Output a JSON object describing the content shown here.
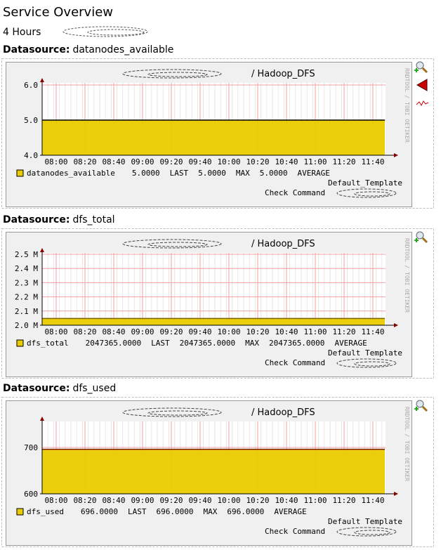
{
  "header": {
    "title": "Service Overview",
    "period": "4 Hours"
  },
  "panels": [
    {
      "label": "Datasource:",
      "name": "datanodes_available"
    },
    {
      "label": "Datasource:",
      "name": "dfs_total"
    },
    {
      "label": "Datasource:",
      "name": "dfs_used"
    }
  ],
  "chart_data": [
    {
      "type": "area",
      "title": "/ Hadoop_DFS",
      "watermark": "RRDTOOL / TOBI OETIKER",
      "categories": [
        "08:00",
        "08:20",
        "08:40",
        "09:00",
        "09:20",
        "09:40",
        "10:00",
        "10:20",
        "10:40",
        "11:00",
        "11:20",
        "11:40"
      ],
      "series": [
        {
          "name": "datanodes_available",
          "color": "#eacc00",
          "edge_color": "#000000",
          "values": [
            5,
            5,
            5,
            5,
            5,
            5,
            5,
            5,
            5,
            5,
            5,
            5
          ],
          "stats": [
            {
              "value": 5,
              "label": "5.0000",
              "name": "LAST"
            },
            {
              "value": 5,
              "label": "5.0000",
              "name": "MAX"
            },
            {
              "value": 5,
              "label": "5.0000",
              "name": "AVERAGE"
            }
          ]
        }
      ],
      "ylim": [
        4,
        6.06
      ],
      "yticks": [
        {
          "value": 4,
          "label": "4.0"
        },
        {
          "value": 5,
          "label": "5.0"
        },
        {
          "value": 6,
          "label": "6.0"
        }
      ],
      "grid": true,
      "template": "Default_Template",
      "check_command": "Check Command"
    },
    {
      "type": "area",
      "title": "/ Hadoop_DFS",
      "watermark": "RRDTOOL / TOBI OETIKER",
      "categories": [
        "08:00",
        "08:20",
        "08:40",
        "09:00",
        "09:20",
        "09:40",
        "10:00",
        "10:20",
        "10:40",
        "11:00",
        "11:20",
        "11:40"
      ],
      "series": [
        {
          "name": "dfs_total",
          "color": "#eacc00",
          "edge_color": "#7a6000",
          "values": [
            2047365,
            2047365,
            2047365,
            2047365,
            2047365,
            2047365,
            2047365,
            2047365,
            2047365,
            2047365,
            2047365,
            2047365
          ],
          "stats": [
            {
              "value": 2047365,
              "label": "2047365.0000",
              "name": "LAST"
            },
            {
              "value": 2047365,
              "label": "2047365.0000",
              "name": "MAX"
            },
            {
              "value": 2047365,
              "label": "2047365.0000",
              "name": "AVERAGE"
            }
          ]
        }
      ],
      "ylim": [
        2000000,
        2510000
      ],
      "yticks": [
        {
          "value": 2000000,
          "label": "2.0 M"
        },
        {
          "value": 2100000,
          "label": "2.1 M"
        },
        {
          "value": 2200000,
          "label": "2.2 M"
        },
        {
          "value": 2300000,
          "label": "2.3 M"
        },
        {
          "value": 2400000,
          "label": "2.4 M"
        },
        {
          "value": 2500000,
          "label": "2.5 M"
        }
      ],
      "grid": true,
      "template": "Default Template",
      "check_command": "Check Command"
    },
    {
      "type": "area",
      "title": "/ Hadoop_DFS",
      "watermark": "RRDTOOL / TOBI OETIKER",
      "categories": [
        "08:00",
        "08:20",
        "08:40",
        "09:00",
        "09:20",
        "09:40",
        "10:00",
        "10:20",
        "10:40",
        "11:00",
        "11:20",
        "11:40"
      ],
      "series": [
        {
          "name": "dfs_used",
          "color": "#eacc00",
          "edge_color": "#7a1010",
          "values": [
            696,
            696,
            696,
            696,
            696,
            696,
            696,
            696,
            696,
            696,
            696,
            696
          ],
          "stats": [
            {
              "value": 696,
              "label": "696.0000",
              "name": "LAST"
            },
            {
              "value": 696,
              "label": "696.0000",
              "name": "MAX"
            },
            {
              "value": 696,
              "label": "696.0000",
              "name": "AVERAGE"
            }
          ]
        }
      ],
      "ylim": [
        600,
        756
      ],
      "yticks": [
        600,
        700
      ],
      "grid": true,
      "template": "Default Template",
      "check_command": "Check Command"
    }
  ]
}
